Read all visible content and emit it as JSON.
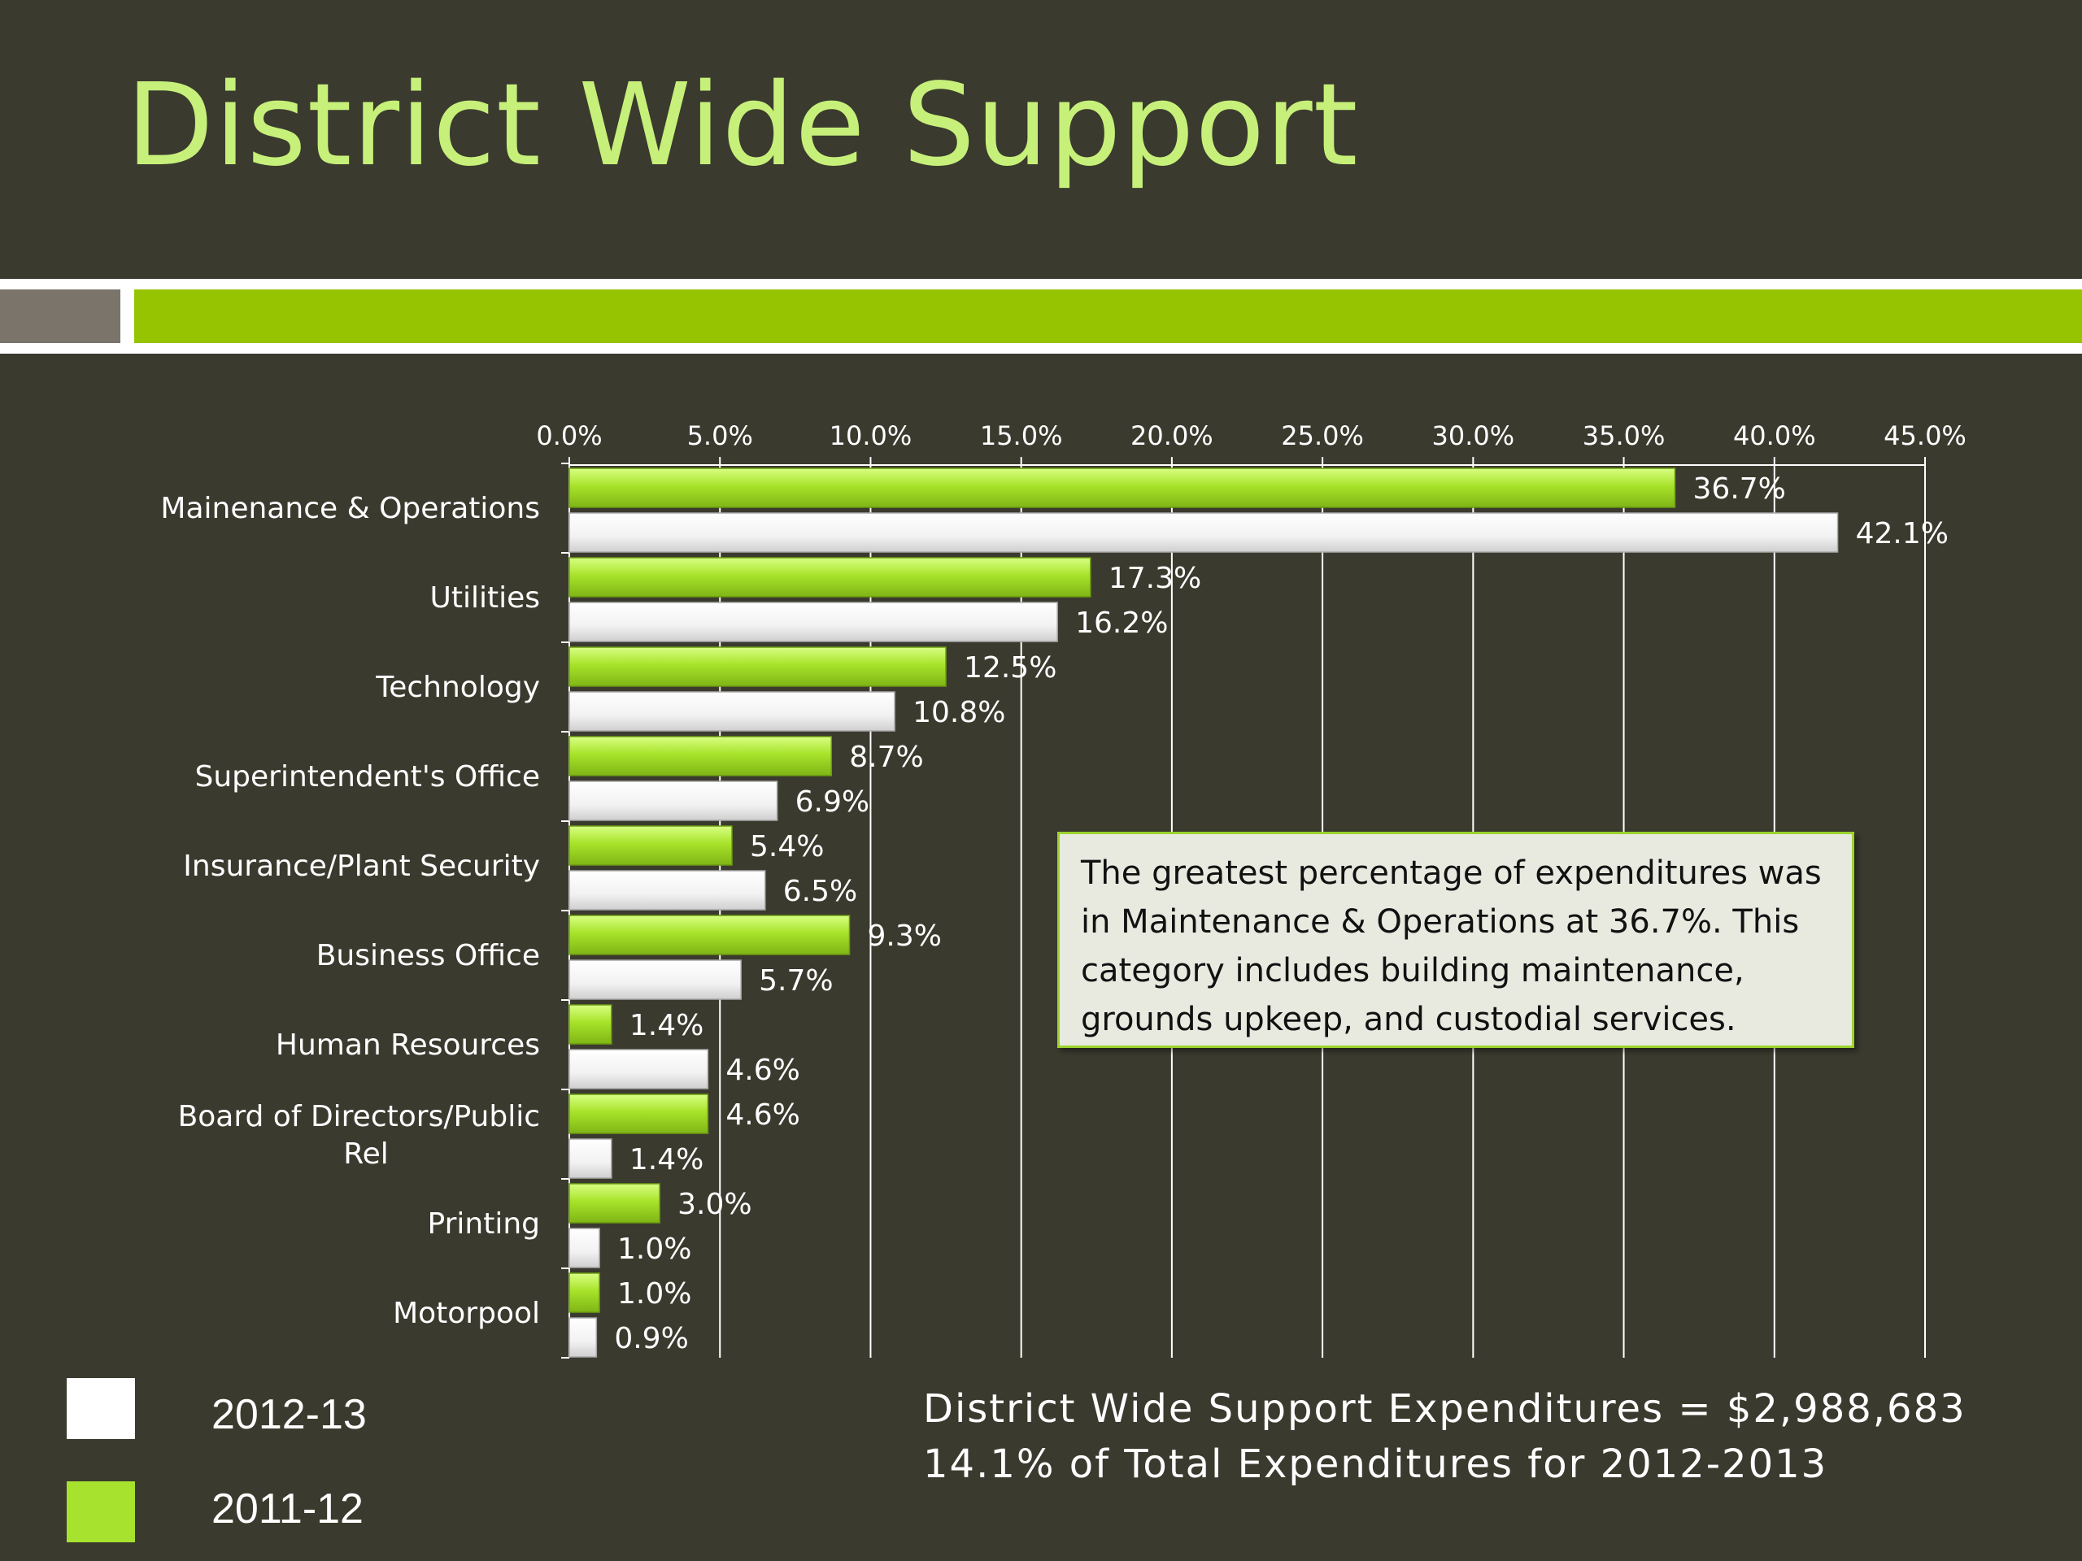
{
  "title": "District Wide Support",
  "colors": {
    "background": "#3b3a2e",
    "title": "#c6f07a",
    "series_2011_12": "#a6e22e",
    "series_2012_13": "#ffffff",
    "band_green": "#96c400",
    "band_gray": "#7b746a"
  },
  "chart_data": {
    "type": "bar",
    "orientation": "horizontal",
    "categories": [
      "Mainenance & Operations",
      "Utilities",
      "Technology",
      "Superintendent's Office",
      "Insurance/Plant Security",
      "Business Office",
      "Human Resources",
      "Board of Directors/Public Rel",
      "Printing",
      "Motorpool"
    ],
    "series": [
      {
        "name": "2011-12",
        "values": [
          36.7,
          17.3,
          12.5,
          8.7,
          5.4,
          9.3,
          1.4,
          4.6,
          3.0,
          1.0
        ],
        "labels": [
          "36.7%",
          "17.3%",
          "12.5%",
          "8.7%",
          "5.4%",
          "9.3%",
          "1.4%",
          "4.6%",
          "3.0%",
          "1.0%"
        ]
      },
      {
        "name": "2012-13",
        "values": [
          42.1,
          16.2,
          10.8,
          6.9,
          6.5,
          5.7,
          4.6,
          1.4,
          1.0,
          0.9
        ],
        "labels": [
          "42.1%",
          "16.2%",
          "10.8%",
          "6.9%",
          "6.5%",
          "5.7%",
          "4.6%",
          "1.4%",
          "1.0%",
          "0.9%"
        ]
      }
    ],
    "xlim": [
      0,
      45
    ],
    "xticks": [
      "0.0%",
      "5.0%",
      "10.0%",
      "15.0%",
      "20.0%",
      "25.0%",
      "30.0%",
      "35.0%",
      "40.0%",
      "45.0%"
    ],
    "xaxis_position": "top",
    "grid": true,
    "legend": "bottom-left"
  },
  "annotation": "The greatest percentage of expenditures was in Maintenance & Operations at 36.7%. This category includes building maintenance, grounds upkeep, and custodial services.",
  "legend": {
    "item1": "2012-13",
    "item2": "2011-12"
  },
  "footer": {
    "line1": "District Wide Support Expenditures =  $2,988,683",
    "line2": "14.1% of Total Expenditures for 2012-2013"
  }
}
